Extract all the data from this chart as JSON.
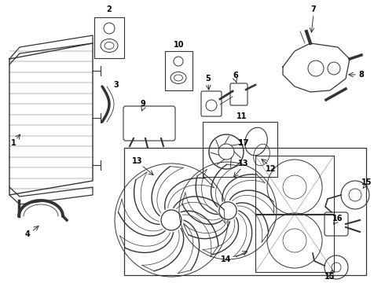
{
  "bg_color": "#ffffff",
  "line_color": "#333333",
  "text_color": "#000000",
  "fig_width": 4.9,
  "fig_height": 3.6,
  "dpi": 100
}
